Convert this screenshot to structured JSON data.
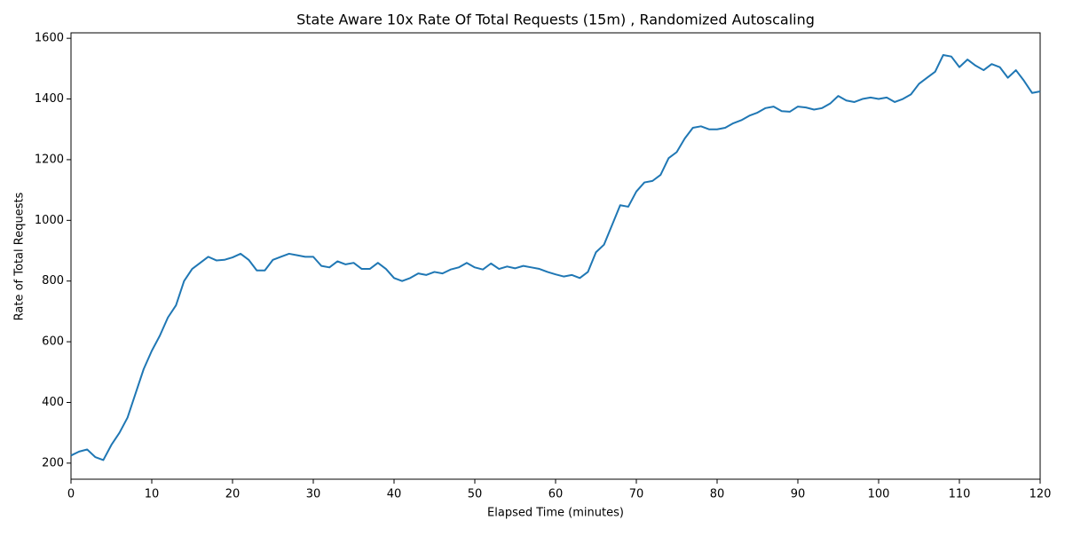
{
  "chart_data": {
    "type": "line",
    "title": "State Aware 10x Rate Of Total Requests (15m) , Randomized Autoscaling",
    "x_label": "Elapsed Time (minutes)",
    "y_label": "Rate of Total Requests",
    "x": [
      0,
      1,
      2,
      3,
      4,
      5,
      6,
      7,
      8,
      9,
      10,
      11,
      12,
      13,
      14,
      15,
      16,
      17,
      18,
      19,
      20,
      21,
      22,
      23,
      24,
      25,
      26,
      27,
      28,
      29,
      30,
      31,
      32,
      33,
      34,
      35,
      36,
      37,
      38,
      39,
      40,
      41,
      42,
      43,
      44,
      45,
      46,
      47,
      48,
      49,
      50,
      51,
      52,
      53,
      54,
      55,
      56,
      57,
      58,
      59,
      60,
      61,
      62,
      63,
      64,
      65,
      66,
      67,
      68,
      69,
      70,
      71,
      72,
      73,
      74,
      75,
      76,
      77,
      78,
      79,
      80,
      81,
      82,
      83,
      84,
      85,
      86,
      87,
      88,
      89,
      90,
      91,
      92,
      93,
      94,
      95,
      96,
      97,
      98,
      99,
      100,
      101,
      102,
      103,
      104,
      105,
      106,
      107,
      108,
      109,
      110,
      111,
      112,
      113,
      114,
      115,
      116,
      117,
      118,
      119,
      120
    ],
    "series": [
      {
        "name": "Rate of Total Requests",
        "color": "#1f77b4",
        "values": [
          225,
          238,
          245,
          220,
          210,
          260,
          300,
          350,
          430,
          510,
          570,
          620,
          680,
          720,
          800,
          840,
          860,
          880,
          868,
          870,
          878,
          890,
          870,
          835,
          835,
          870,
          880,
          890,
          885,
          880,
          880,
          850,
          845,
          865,
          855,
          860,
          840,
          840,
          860,
          840,
          810,
          800,
          810,
          825,
          820,
          830,
          825,
          838,
          845,
          860,
          845,
          838,
          858,
          840,
          848,
          842,
          850,
          845,
          840,
          830,
          822,
          815,
          820,
          810,
          830,
          895,
          920,
          985,
          1050,
          1045,
          1095,
          1125,
          1130,
          1150,
          1205,
          1225,
          1270,
          1305,
          1310,
          1300,
          1300,
          1305,
          1320,
          1330,
          1345,
          1355,
          1370,
          1375,
          1360,
          1358,
          1375,
          1372,
          1365,
          1370,
          1385,
          1410,
          1395,
          1390,
          1400,
          1405,
          1400,
          1405,
          1390,
          1400,
          1415,
          1450,
          1470,
          1490,
          1545,
          1540,
          1505,
          1530,
          1510,
          1495,
          1515,
          1505,
          1470,
          1495,
          1460,
          1420,
          1425
        ]
      }
    ],
    "xlim": [
      0,
      120
    ],
    "xticks": [
      0,
      10,
      20,
      30,
      40,
      50,
      60,
      70,
      80,
      90,
      100,
      110,
      120
    ],
    "ylim": [
      147,
      1618
    ],
    "yticks": [
      200,
      400,
      600,
      800,
      1000,
      1200,
      1400,
      1600
    ]
  }
}
